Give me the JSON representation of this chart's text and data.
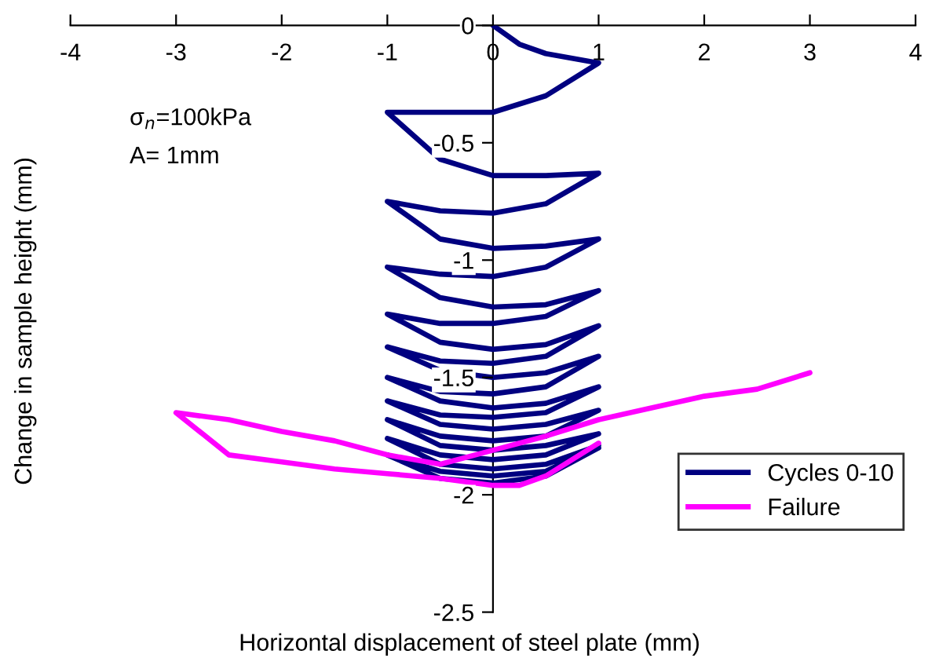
{
  "chart_data": {
    "type": "line",
    "xlabel": "Horizontal displacement of steel plate (mm)",
    "ylabel": "Change in sample height (mm)",
    "annotations": [
      "σ$_{n}$=100kPa",
      "A= 1mm"
    ],
    "xlim": [
      -4,
      4
    ],
    "ylim": [
      -2.5,
      0
    ],
    "xticks": [
      {
        "value": -4,
        "label": "-4"
      },
      {
        "value": -3,
        "label": "-3"
      },
      {
        "value": -2,
        "label": "-2"
      },
      {
        "value": -1,
        "label": "-1"
      },
      0,
      1,
      2,
      3,
      4
    ],
    "yticks": [
      0,
      {
        "value": -0.5,
        "label": "-0.5"
      },
      {
        "value": -1,
        "label": "-1"
      },
      {
        "value": -1.5,
        "label": "-1.5"
      },
      {
        "value": -2,
        "label": "-2"
      },
      {
        "value": -2.5,
        "label": "-2.5"
      }
    ],
    "grid": false,
    "legend": "bottom right",
    "marker": "none",
    "line_style": "solid",
    "series": [
      {
        "name": "Cycles 0-10",
        "color": "#000080",
        "x": [
          0,
          0.25,
          0.5,
          1,
          0.5,
          0,
          -0.5,
          -1,
          -0.5,
          0,
          0.5,
          1,
          0.5,
          0,
          -0.5,
          -1,
          -0.5,
          0,
          0.5,
          1,
          0.5,
          0,
          -0.5,
          -1,
          -0.5,
          0,
          0.5,
          1,
          0.5,
          0,
          -0.5,
          -1,
          -0.5,
          0,
          0.5,
          1,
          0.5,
          0,
          -0.5,
          -1,
          -0.5,
          0,
          0.5,
          1,
          0.5,
          0,
          -0.5,
          -1,
          -0.5,
          0,
          0.5,
          1,
          0.5,
          0,
          -0.5,
          -1,
          -0.5,
          0,
          0.5,
          1,
          0.5,
          0,
          -0.5,
          -1,
          -0.5,
          0,
          0.5,
          1,
          0.5,
          0,
          -0.5,
          -1,
          -0.5,
          0,
          0.5,
          1,
          0.5,
          0,
          -0.5,
          -1,
          -0.5,
          0,
          0.5,
          1
        ],
        "values": [
          0,
          -0.08,
          -0.12,
          -0.16,
          -0.3,
          -0.37,
          -0.37,
          -0.37,
          -0.57,
          -0.64,
          -0.64,
          -0.63,
          -0.76,
          -0.8,
          -0.79,
          -0.75,
          -0.91,
          -0.95,
          -0.94,
          -0.91,
          -1.03,
          -1.07,
          -1.06,
          -1.03,
          -1.16,
          -1.2,
          -1.19,
          -1.13,
          -1.24,
          -1.27,
          -1.27,
          -1.23,
          -1.35,
          -1.38,
          -1.36,
          -1.28,
          -1.41,
          -1.44,
          -1.43,
          -1.37,
          -1.47,
          -1.5,
          -1.48,
          -1.41,
          -1.54,
          -1.57,
          -1.56,
          -1.5,
          -1.6,
          -1.63,
          -1.61,
          -1.54,
          -1.65,
          -1.67,
          -1.66,
          -1.6,
          -1.7,
          -1.72,
          -1.7,
          -1.64,
          -1.75,
          -1.77,
          -1.75,
          -1.68,
          -1.79,
          -1.81,
          -1.79,
          -1.74,
          -1.83,
          -1.85,
          -1.83,
          -1.76,
          -1.87,
          -1.89,
          -1.87,
          -1.79,
          -1.9,
          -1.92,
          -1.9,
          -1.83,
          -1.93,
          -1.95,
          -1.92,
          -1.8
        ]
      },
      {
        "name": "Failure",
        "color": "#ff00ff",
        "x": [
          1,
          0.5,
          0.25,
          0,
          -0.5,
          -1,
          -1.5,
          -2,
          -2.5,
          -3,
          -2.5,
          -2,
          -1.5,
          -1,
          -0.5,
          0,
          0.5,
          1,
          1.5,
          2,
          2.5,
          3
        ],
        "values": [
          -1.78,
          -1.92,
          -1.96,
          -1.96,
          -1.93,
          -1.91,
          -1.89,
          -1.86,
          -1.83,
          -1.65,
          -1.68,
          -1.73,
          -1.77,
          -1.83,
          -1.87,
          -1.81,
          -1.75,
          -1.68,
          -1.63,
          -1.58,
          -1.55,
          -1.48
        ]
      }
    ]
  }
}
